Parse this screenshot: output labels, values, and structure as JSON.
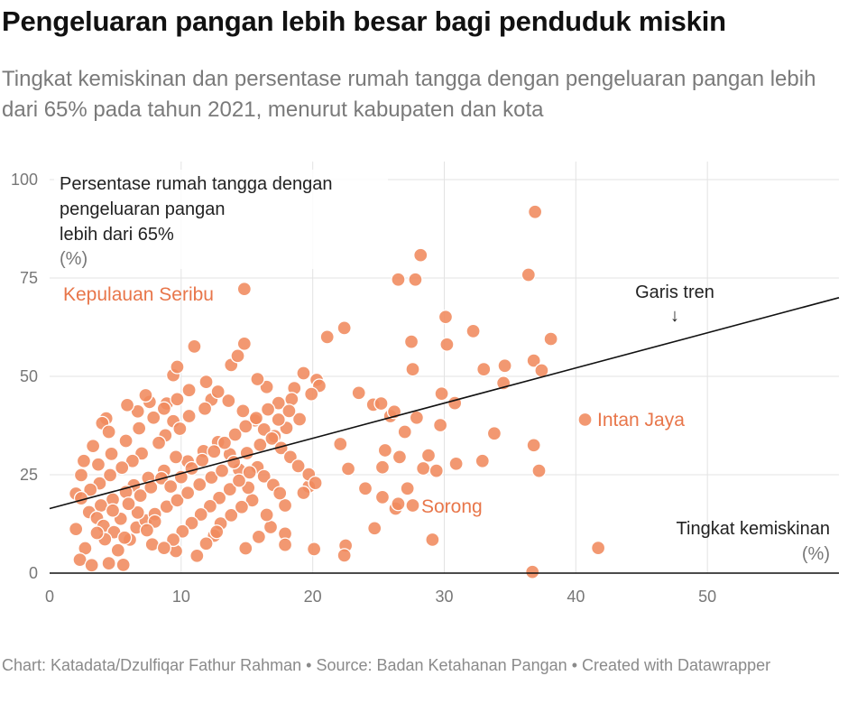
{
  "header": {
    "title": "Pengeluaran pangan lebih besar bagi penduduk miskin",
    "subtitle": "Tingkat kemiskinan dan persentase rumah tangga dengan pengeluaran pangan lebih dari 65% pada tahun 2021, menurut kabupaten dan kota"
  },
  "footer": {
    "credit": "Chart: Katadata/Dzulfiqar Fathur Rahman • Source: Badan Ketahanan Pangan • Created with Datawrapper"
  },
  "chart_data": {
    "type": "scatter",
    "title": "Pengeluaran pangan lebih besar bagi penduduk miskin",
    "subtitle": "Tingkat kemiskinan dan persentase rumah tangga dengan pengeluaran pangan lebih dari 65% pada tahun 2021, menurut kabupaten dan kota",
    "xlabel": "Tingkat kemiskinan",
    "xunit": "(%)",
    "ylabel_lines": [
      "Persentase rumah tangga dengan",
      "pengeluaran pangan",
      "lebih dari 65%"
    ],
    "yunit": "(%)",
    "xlim": [
      0,
      60
    ],
    "ylim": [
      0,
      100
    ],
    "x_ticks": [
      0,
      10,
      20,
      30,
      40,
      50
    ],
    "y_ticks": [
      0,
      25,
      50,
      75,
      100
    ],
    "x_tick_labels": [
      "0",
      "10",
      "20",
      "30",
      "40",
      "50"
    ],
    "y_tick_labels": [
      "0",
      "25",
      "50",
      "75",
      "100"
    ],
    "grid": true,
    "point_color": "#f08a5d",
    "point_stroke": "#ffffff",
    "trend_color": "#111111",
    "trendline": {
      "label": "Garis tren",
      "arrow": "↓",
      "x": [
        0,
        60
      ],
      "y": [
        16.4,
        70
      ]
    },
    "annotations": [
      {
        "text": "Kepulauan Seribu",
        "x": 14.8,
        "y": 72.2
      },
      {
        "text": "Intan Jaya",
        "x": 40.7,
        "y": 39.0
      },
      {
        "text": "Sorong",
        "x": 27.5,
        "y": 17.2
      }
    ],
    "points": [
      [
        14.8,
        72.2
      ],
      [
        40.7,
        39.0
      ],
      [
        36.9,
        91.8
      ],
      [
        28.2,
        80.8
      ],
      [
        26.5,
        74.6
      ],
      [
        27.8,
        74.6
      ],
      [
        36.4,
        75.8
      ],
      [
        30.1,
        65.1
      ],
      [
        32.2,
        61.5
      ],
      [
        22.4,
        62.3
      ],
      [
        21.1,
        60.0
      ],
      [
        27.5,
        58.8
      ],
      [
        30.2,
        58.1
      ],
      [
        38.1,
        59.5
      ],
      [
        36.8,
        54.0
      ],
      [
        37.4,
        51.5
      ],
      [
        34.6,
        52.7
      ],
      [
        33.0,
        51.8
      ],
      [
        27.6,
        51.8
      ],
      [
        34.5,
        48.3
      ],
      [
        29.8,
        45.6
      ],
      [
        30.8,
        43.2
      ],
      [
        23.5,
        45.8
      ],
      [
        24.6,
        42.8
      ],
      [
        25.9,
        39.9
      ],
      [
        27.9,
        39.5
      ],
      [
        29.7,
        37.6
      ],
      [
        33.8,
        35.5
      ],
      [
        36.8,
        32.5
      ],
      [
        37.2,
        26.0
      ],
      [
        41.7,
        6.4
      ],
      [
        36.7,
        0.3
      ],
      [
        29.1,
        8.5
      ],
      [
        24.7,
        11.4
      ],
      [
        22.5,
        7.0
      ],
      [
        22.4,
        4.5
      ],
      [
        20.1,
        6.1
      ],
      [
        26.3,
        16.4
      ],
      [
        27.6,
        17.2
      ],
      [
        26.5,
        17.6
      ],
      [
        24.0,
        21.5
      ],
      [
        25.3,
        19.3
      ],
      [
        27.2,
        21.5
      ],
      [
        28.4,
        26.6
      ],
      [
        29.4,
        26.0
      ],
      [
        30.9,
        27.8
      ],
      [
        32.9,
        28.5
      ],
      [
        25.3,
        26.9
      ],
      [
        22.1,
        32.8
      ],
      [
        22.7,
        26.5
      ],
      [
        25.5,
        31.2
      ],
      [
        26.6,
        29.5
      ],
      [
        28.8,
        29.9
      ],
      [
        27.0,
        35.9
      ],
      [
        25.2,
        43.1
      ],
      [
        26.2,
        41.0
      ],
      [
        20.3,
        49.1
      ],
      [
        20.5,
        47.6
      ],
      [
        19.3,
        50.8
      ],
      [
        18.6,
        47.0
      ],
      [
        19.9,
        45.5
      ],
      [
        18.4,
        44.2
      ],
      [
        17.4,
        43.2
      ],
      [
        16.5,
        47.3
      ],
      [
        15.8,
        49.3
      ],
      [
        13.8,
        52.9
      ],
      [
        14.3,
        55.2
      ],
      [
        14.8,
        58.3
      ],
      [
        11.0,
        57.6
      ],
      [
        9.4,
        50.3
      ],
      [
        9.7,
        52.4
      ],
      [
        9.4,
        38.6
      ],
      [
        8.9,
        43.1
      ],
      [
        7.6,
        43.5
      ],
      [
        7.3,
        45.2
      ],
      [
        6.7,
        41.1
      ],
      [
        5.9,
        42.7
      ],
      [
        4.3,
        39.3
      ],
      [
        4.0,
        38.1
      ],
      [
        4.5,
        35.9
      ],
      [
        3.3,
        32.3
      ],
      [
        2.6,
        28.5
      ],
      [
        2.4,
        24.9
      ],
      [
        2.0,
        20.2
      ],
      [
        2.0,
        11.2
      ],
      [
        2.7,
        6.3
      ],
      [
        2.3,
        3.4
      ],
      [
        3.2,
        2.0
      ],
      [
        4.5,
        2.5
      ],
      [
        5.6,
        2.1
      ],
      [
        5.2,
        5.8
      ],
      [
        6.1,
        8.5
      ],
      [
        7.8,
        7.3
      ],
      [
        9.6,
        5.6
      ],
      [
        11.2,
        4.4
      ],
      [
        12.5,
        9.5
      ],
      [
        14.9,
        6.3
      ],
      [
        15.9,
        9.2
      ],
      [
        16.8,
        11.7
      ],
      [
        17.9,
        10.0
      ],
      [
        17.9,
        7.2
      ],
      [
        16.5,
        14.8
      ],
      [
        17.9,
        17.2
      ],
      [
        19.7,
        22.0
      ],
      [
        19.3,
        20.4
      ],
      [
        15.4,
        18.5
      ],
      [
        15.1,
        21.7
      ],
      [
        14.4,
        26.3
      ],
      [
        13.7,
        30.2
      ],
      [
        12.8,
        33.3
      ],
      [
        11.7,
        31.0
      ],
      [
        10.5,
        28.4
      ],
      [
        9.6,
        29.5
      ],
      [
        8.7,
        26.0
      ],
      [
        7.5,
        24.2
      ],
      [
        6.4,
        22.3
      ],
      [
        5.8,
        20.6
      ],
      [
        4.8,
        18.7
      ],
      [
        3.9,
        17.2
      ],
      [
        3.0,
        15.5
      ],
      [
        3.6,
        14.0
      ],
      [
        4.1,
        12.0
      ],
      [
        4.9,
        10.4
      ],
      [
        5.7,
        9.0
      ],
      [
        6.6,
        11.6
      ],
      [
        7.3,
        13.4
      ],
      [
        8.0,
        15.0
      ],
      [
        8.9,
        16.9
      ],
      [
        9.7,
        18.5
      ],
      [
        10.5,
        20.4
      ],
      [
        11.4,
        22.5
      ],
      [
        12.3,
        24.3
      ],
      [
        13.1,
        26.0
      ],
      [
        14.0,
        28.2
      ],
      [
        15.0,
        30.5
      ],
      [
        16.0,
        32.6
      ],
      [
        17.1,
        34.8
      ],
      [
        18.0,
        36.9
      ],
      [
        19.0,
        39.1
      ],
      [
        12.3,
        44.1
      ],
      [
        11.8,
        41.8
      ],
      [
        10.6,
        39.9
      ],
      [
        9.9,
        36.7
      ],
      [
        8.8,
        35.0
      ],
      [
        8.3,
        33.1
      ],
      [
        7.0,
        30.4
      ],
      [
        6.3,
        28.5
      ],
      [
        5.5,
        26.8
      ],
      [
        4.6,
        24.9
      ],
      [
        3.8,
        22.8
      ],
      [
        3.1,
        21.2
      ],
      [
        2.4,
        19.0
      ],
      [
        3.7,
        27.6
      ],
      [
        4.7,
        30.3
      ],
      [
        5.8,
        33.6
      ],
      [
        6.8,
        36.8
      ],
      [
        7.9,
        39.5
      ],
      [
        8.7,
        41.8
      ],
      [
        9.7,
        44.2
      ],
      [
        10.6,
        46.5
      ],
      [
        11.9,
        48.6
      ],
      [
        12.8,
        46.1
      ],
      [
        13.6,
        43.8
      ],
      [
        14.7,
        41.2
      ],
      [
        15.6,
        38.8
      ],
      [
        16.3,
        36.5
      ],
      [
        16.9,
        34.2
      ],
      [
        17.6,
        31.8
      ],
      [
        18.3,
        29.5
      ],
      [
        18.9,
        27.2
      ],
      [
        19.7,
        25.1
      ],
      [
        20.2,
        22.9
      ],
      [
        15.8,
        26.9
      ],
      [
        16.3,
        24.6
      ],
      [
        17.0,
        22.4
      ],
      [
        17.5,
        20.3
      ],
      [
        12.9,
        19.1
      ],
      [
        12.2,
        17.0
      ],
      [
        11.5,
        14.9
      ],
      [
        10.8,
        12.7
      ],
      [
        10.1,
        10.6
      ],
      [
        9.4,
        8.5
      ],
      [
        8.7,
        6.4
      ],
      [
        8.0,
        13.1
      ],
      [
        7.4,
        10.9
      ],
      [
        6.7,
        15.4
      ],
      [
        6.0,
        17.6
      ],
      [
        5.4,
        13.8
      ],
      [
        4.8,
        15.9
      ],
      [
        4.2,
        8.6
      ],
      [
        3.6,
        10.2
      ],
      [
        6.9,
        19.7
      ],
      [
        7.7,
        21.8
      ],
      [
        8.5,
        24.1
      ],
      [
        9.2,
        22.0
      ],
      [
        10.0,
        24.4
      ],
      [
        10.8,
        26.6
      ],
      [
        11.6,
        28.7
      ],
      [
        12.5,
        30.9
      ],
      [
        13.3,
        33.1
      ],
      [
        14.1,
        35.2
      ],
      [
        14.9,
        37.3
      ],
      [
        15.7,
        39.4
      ],
      [
        16.6,
        41.6
      ],
      [
        17.4,
        39.0
      ],
      [
        18.2,
        41.2
      ],
      [
        13.7,
        21.3
      ],
      [
        14.4,
        23.5
      ],
      [
        15.2,
        25.6
      ],
      [
        13.0,
        12.6
      ],
      [
        13.8,
        14.7
      ],
      [
        14.6,
        16.8
      ],
      [
        11.9,
        7.5
      ],
      [
        12.7,
        10.5
      ]
    ]
  }
}
